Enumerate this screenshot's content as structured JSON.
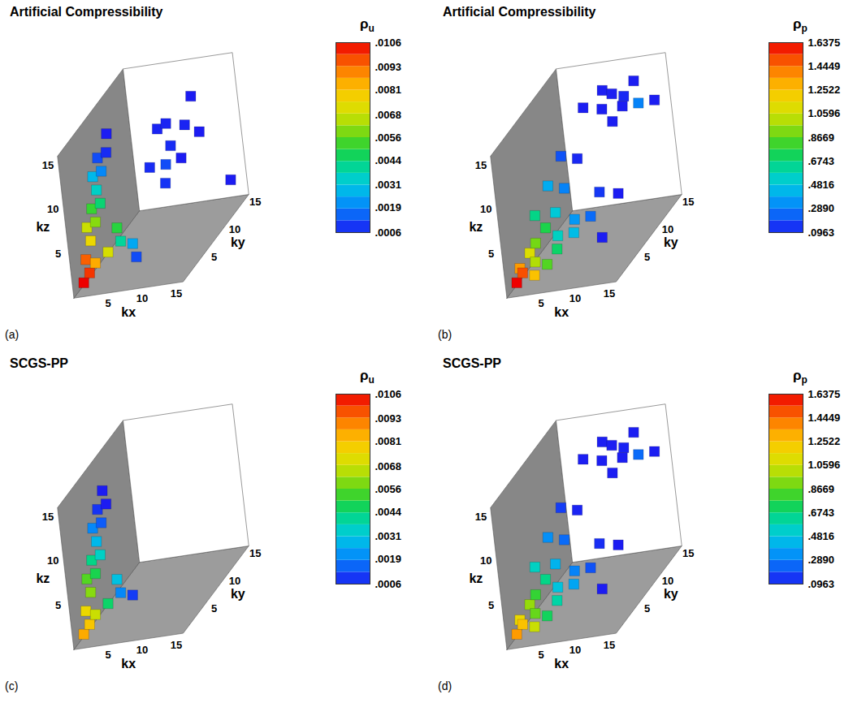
{
  "chart_data": [
    {
      "type": "isosurface",
      "title": "Artificial Compressibility",
      "panel_label": "(a)",
      "xlabel": "kx",
      "ylabel": "ky",
      "zlabel": "kz",
      "xlim": [
        0,
        16
      ],
      "ylim": [
        0,
        16
      ],
      "zlim": [
        0,
        16
      ],
      "xticks": [
        5,
        10,
        15
      ],
      "yticks": [
        5,
        10,
        15
      ],
      "zticks": [
        5,
        10,
        15
      ],
      "colorbar": {
        "label": "ρ",
        "label_subscript": "u",
        "range": [
          0.0006,
          0.0106
        ],
        "ticks": [
          {
            "value": 0.0106,
            "label": ".0106"
          },
          {
            "value": 0.0093,
            "label": ".0093"
          },
          {
            "value": 0.0081,
            "label": ".0081"
          },
          {
            "value": 0.0068,
            "label": ".0068"
          },
          {
            "value": 0.0056,
            "label": ".0056"
          },
          {
            "value": 0.0044,
            "label": ".0044"
          },
          {
            "value": 0.0031,
            "label": ".0031"
          },
          {
            "value": 0.0019,
            "label": ".0019"
          },
          {
            "value": 0.0006,
            "label": ".0006"
          }
        ]
      },
      "points": {
        "kx": [
          1,
          2,
          1,
          3,
          2,
          1,
          3,
          2,
          4,
          3,
          2,
          4,
          3,
          5,
          4,
          5,
          6,
          7,
          8,
          9,
          9,
          11,
          12,
          10,
          13,
          8,
          12,
          11,
          10,
          14,
          15
        ],
        "ky": [
          1,
          1,
          2,
          1,
          2,
          3,
          2,
          3,
          2,
          3,
          4,
          3,
          4,
          3,
          5,
          1,
          2,
          1,
          2,
          1,
          6,
          8,
          10,
          9,
          7,
          10,
          12,
          6,
          8,
          10,
          14
        ],
        "kz": [
          1,
          2,
          3,
          3,
          5,
          6,
          7,
          8,
          9,
          10,
          11,
          12,
          13,
          14,
          15,
          4,
          6,
          5,
          4,
          3,
          10,
          11,
          12,
          13,
          10,
          12,
          14,
          8,
          9,
          11,
          3
        ],
        "values": [
          0.0106,
          0.01,
          0.0095,
          0.0085,
          0.0075,
          0.0068,
          0.006,
          0.0052,
          0.0044,
          0.0035,
          0.0028,
          0.002,
          0.0012,
          0.0008,
          0.0006,
          0.007,
          0.005,
          0.004,
          0.0025,
          0.0012,
          0.0008,
          0.0008,
          0.0007,
          0.0007,
          0.0006,
          0.0007,
          0.0006,
          0.0009,
          0.0012,
          0.0006,
          0.0006
        ]
      }
    },
    {
      "type": "isosurface",
      "title": "Artificial Compressibility",
      "panel_label": "(b)",
      "xlabel": "kx",
      "ylabel": "ky",
      "zlabel": "kz",
      "xlim": [
        0,
        16
      ],
      "ylim": [
        0,
        16
      ],
      "zlim": [
        0,
        16
      ],
      "xticks": [
        5,
        10,
        15
      ],
      "yticks": [
        5,
        10,
        15
      ],
      "zticks": [
        5,
        10,
        15
      ],
      "colorbar": {
        "label": "ρ",
        "label_subscript": "p",
        "range": [
          0.0963,
          1.6375
        ],
        "ticks": [
          1.6375,
          1.4449,
          1.2522,
          1.0596,
          {
            "value": 0.8669,
            "label": ".8669"
          },
          {
            "value": 0.6743,
            "label": ".6743"
          },
          {
            "value": 0.4816,
            "label": ".4816"
          },
          {
            "value": 0.289,
            "label": ".2890"
          },
          {
            "value": 0.0963,
            "label": ".0963"
          }
        ]
      },
      "points": {
        "kx": [
          1,
          2,
          1,
          3,
          2,
          4,
          3,
          5,
          4,
          6,
          2,
          7,
          5,
          8,
          3,
          9,
          6,
          10,
          4,
          11,
          7,
          12,
          13,
          10,
          11,
          12,
          13,
          9,
          14,
          8,
          15,
          12,
          13
        ],
        "ky": [
          1,
          1,
          2,
          2,
          3,
          1,
          3,
          2,
          4,
          3,
          5,
          2,
          5,
          4,
          7,
          3,
          6,
          5,
          9,
          6,
          8,
          4,
          7,
          10,
          11,
          12,
          13,
          12,
          12,
          9,
          14,
          9,
          10
        ],
        "kz": [
          1,
          2,
          2,
          1,
          3,
          3,
          4,
          2,
          5,
          3,
          6,
          5,
          6,
          4,
          8,
          6,
          8,
          5,
          10,
          7,
          10,
          3,
          6,
          14,
          15,
          14,
          15,
          15,
          13,
          15,
          12,
          13,
          14
        ],
        "values": [
          1.6375,
          1.5,
          1.35,
          1.25,
          1.1,
          1.0,
          0.9,
          0.85,
          0.75,
          0.7,
          0.65,
          0.55,
          0.5,
          0.45,
          0.4,
          0.35,
          0.3,
          0.25,
          0.2,
          0.15,
          0.12,
          0.1,
          0.0963,
          0.1,
          0.1,
          0.12,
          0.1,
          0.1,
          0.3,
          0.1,
          0.1,
          0.1,
          0.1
        ]
      }
    },
    {
      "type": "isosurface",
      "title": "SCGS-PP",
      "panel_label": "(c)",
      "xlabel": "kx",
      "ylabel": "ky",
      "zlabel": "kz",
      "xlim": [
        0,
        16
      ],
      "ylim": [
        0,
        16
      ],
      "zlim": [
        0,
        16
      ],
      "xticks": [
        5,
        10,
        15
      ],
      "yticks": [
        5,
        10,
        15
      ],
      "zticks": [
        5,
        10,
        15
      ],
      "colorbar": {
        "label": "ρ",
        "label_subscript": "u",
        "range": [
          0.0006,
          0.0106
        ],
        "ticks": [
          {
            "value": 0.0106,
            "label": ".0106"
          },
          {
            "value": 0.0093,
            "label": ".0093"
          },
          {
            "value": 0.0081,
            "label": ".0081"
          },
          {
            "value": 0.0068,
            "label": ".0068"
          },
          {
            "value": 0.0056,
            "label": ".0056"
          },
          {
            "value": 0.0044,
            "label": ".0044"
          },
          {
            "value": 0.0031,
            "label": ".0031"
          },
          {
            "value": 0.0019,
            "label": ".0019"
          },
          {
            "value": 0.0006,
            "label": ".0006"
          }
        ]
      },
      "points": {
        "kx": [
          1,
          2,
          1,
          3,
          2,
          1,
          3,
          2,
          4,
          3,
          2,
          4,
          3,
          5,
          4,
          5,
          6,
          7,
          8
        ],
        "ky": [
          1,
          1,
          2,
          1,
          2,
          3,
          2,
          3,
          2,
          3,
          4,
          3,
          4,
          3,
          4,
          1,
          2,
          1,
          2
        ],
        "kz": [
          1,
          2,
          3,
          3,
          5,
          6,
          7,
          8,
          9,
          10,
          11,
          12,
          13,
          14,
          15,
          4,
          6,
          5,
          4
        ],
        "values": [
          0.0085,
          0.008,
          0.0075,
          0.0068,
          0.006,
          0.0055,
          0.0048,
          0.0042,
          0.0035,
          0.0028,
          0.002,
          0.0014,
          0.0009,
          0.0006,
          0.0006,
          0.0045,
          0.003,
          0.002,
          0.001
        ]
      }
    },
    {
      "type": "isosurface",
      "title": "SCGS-PP",
      "panel_label": "(d)",
      "xlabel": "kx",
      "ylabel": "ky",
      "zlabel": "kz",
      "xlim": [
        0,
        16
      ],
      "ylim": [
        0,
        16
      ],
      "zlim": [
        0,
        16
      ],
      "xticks": [
        5,
        10,
        15
      ],
      "yticks": [
        5,
        10,
        15
      ],
      "zticks": [
        5,
        10,
        15
      ],
      "colorbar": {
        "label": "ρ",
        "label_subscript": "p",
        "range": [
          0.0963,
          1.6375
        ],
        "ticks": [
          1.6375,
          1.4449,
          1.2522,
          1.0596,
          {
            "value": 0.8669,
            "label": ".8669"
          },
          {
            "value": 0.6743,
            "label": ".6743"
          },
          {
            "value": 0.4816,
            "label": ".4816"
          },
          {
            "value": 0.289,
            "label": ".2890"
          },
          {
            "value": 0.0963,
            "label": ".0963"
          }
        ]
      },
      "points": {
        "kx": [
          1,
          2,
          1,
          3,
          2,
          4,
          3,
          5,
          4,
          6,
          2,
          7,
          5,
          8,
          3,
          9,
          6,
          10,
          4,
          11,
          7,
          12,
          13,
          10,
          11,
          12,
          13,
          9,
          14,
          8,
          15,
          12,
          13
        ],
        "ky": [
          1,
          1,
          2,
          2,
          3,
          1,
          3,
          2,
          4,
          3,
          5,
          2,
          5,
          4,
          7,
          3,
          6,
          5,
          9,
          6,
          8,
          4,
          7,
          10,
          11,
          12,
          13,
          12,
          12,
          9,
          14,
          9,
          10
        ],
        "kz": [
          1,
          2,
          2,
          1,
          3,
          3,
          4,
          2,
          5,
          3,
          6,
          5,
          6,
          4,
          8,
          6,
          8,
          5,
          10,
          7,
          10,
          3,
          6,
          14,
          15,
          14,
          15,
          15,
          13,
          15,
          12,
          13,
          14
        ],
        "values": [
          1.35,
          1.25,
          1.15,
          1.05,
          0.95,
          0.88,
          0.8,
          0.72,
          0.65,
          0.6,
          0.55,
          0.48,
          0.42,
          0.38,
          0.33,
          0.3,
          0.25,
          0.2,
          0.16,
          0.13,
          0.11,
          0.0963,
          0.0963,
          0.1,
          0.1,
          0.11,
          0.1,
          0.1,
          0.25,
          0.1,
          0.1,
          0.1,
          0.1
        ]
      }
    }
  ]
}
